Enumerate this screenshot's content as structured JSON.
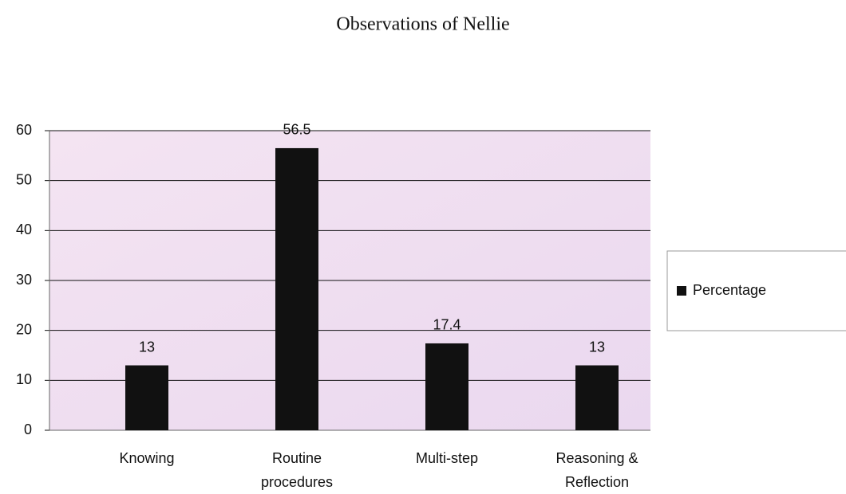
{
  "chart_data": {
    "type": "bar",
    "title": "Observations of Nellie",
    "categories": [
      "Knowing",
      "Routine procedures",
      "Multi-step",
      "Reasoning & Reflection"
    ],
    "series": [
      {
        "name": "Percentage",
        "color": "#111111",
        "values": [
          13,
          56.5,
          17.4,
          13
        ]
      }
    ],
    "ylim": [
      0,
      60
    ],
    "yticks": [
      0,
      10,
      20,
      30,
      40,
      50,
      60
    ],
    "grid": true,
    "legend": "right"
  }
}
